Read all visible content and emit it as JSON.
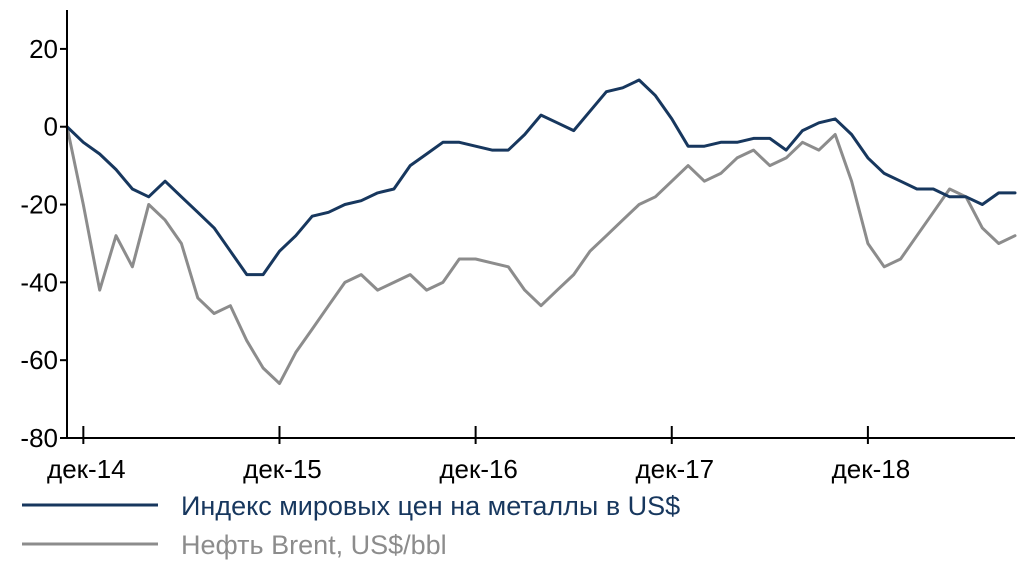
{
  "chart_data": {
    "type": "line",
    "title": "",
    "xlabel": "",
    "ylabel": "",
    "ylim": [
      -80,
      30
    ],
    "yticks": [
      -80,
      -60,
      -40,
      -20,
      0,
      20
    ],
    "ytick_labels": [
      "-80",
      "-60",
      "-40",
      "-20",
      "0",
      "20"
    ],
    "xticks": [
      "дек-14",
      "дек-15",
      "дек-16",
      "дек-17",
      "дек-18"
    ],
    "grid": false,
    "legend_position": "bottom-left",
    "x_range": [
      "2014-11",
      "2019-09"
    ],
    "series": [
      {
        "name": "Индекс мировых цен на металлы в US$",
        "color": "#17375e",
        "x": [
          "2014-11",
          "2014-12",
          "2015-01",
          "2015-02",
          "2015-03",
          "2015-04",
          "2015-05",
          "2015-06",
          "2015-07",
          "2015-08",
          "2015-09",
          "2015-10",
          "2015-11",
          "2015-12",
          "2016-01",
          "2016-02",
          "2016-03",
          "2016-04",
          "2016-05",
          "2016-06",
          "2016-07",
          "2016-08",
          "2016-09",
          "2016-10",
          "2016-11",
          "2016-12",
          "2017-01",
          "2017-02",
          "2017-03",
          "2017-04",
          "2017-05",
          "2017-06",
          "2017-07",
          "2017-08",
          "2017-09",
          "2017-10",
          "2017-11",
          "2017-12",
          "2018-01",
          "2018-02",
          "2018-03",
          "2018-04",
          "2018-05",
          "2018-06",
          "2018-07",
          "2018-08",
          "2018-09",
          "2018-10",
          "2018-11",
          "2018-12",
          "2019-01",
          "2019-02",
          "2019-03",
          "2019-04",
          "2019-05",
          "2019-06",
          "2019-07",
          "2019-08",
          "2019-09"
        ],
        "values": [
          0,
          -4,
          -7,
          -11,
          -16,
          -18,
          -14,
          -18,
          -22,
          -26,
          -32,
          -38,
          -38,
          -32,
          -28,
          -23,
          -22,
          -20,
          -19,
          -17,
          -16,
          -10,
          -7,
          -4,
          -4,
          -5,
          -6,
          -6,
          -2,
          3,
          1,
          -1,
          4,
          9,
          10,
          12,
          8,
          2,
          -5,
          -5,
          -4,
          -4,
          -3,
          -3,
          -6,
          -1,
          1,
          2,
          -2,
          -8,
          -12,
          -14,
          -16,
          -16,
          -18,
          -18,
          -20,
          -17,
          -17
        ]
      },
      {
        "name": "Нефть Brent, US$/bbl",
        "color": "#8c8c8c",
        "x": [
          "2014-11",
          "2014-12",
          "2015-01",
          "2015-02",
          "2015-03",
          "2015-04",
          "2015-05",
          "2015-06",
          "2015-07",
          "2015-08",
          "2015-09",
          "2015-10",
          "2015-11",
          "2015-12",
          "2016-01",
          "2016-02",
          "2016-03",
          "2016-04",
          "2016-05",
          "2016-06",
          "2016-07",
          "2016-08",
          "2016-09",
          "2016-10",
          "2016-11",
          "2016-12",
          "2017-01",
          "2017-02",
          "2017-03",
          "2017-04",
          "2017-05",
          "2017-06",
          "2017-07",
          "2017-08",
          "2017-09",
          "2017-10",
          "2017-11",
          "2017-12",
          "2018-01",
          "2018-02",
          "2018-03",
          "2018-04",
          "2018-05",
          "2018-06",
          "2018-07",
          "2018-08",
          "2018-09",
          "2018-10",
          "2018-11",
          "2018-12",
          "2019-01",
          "2019-02",
          "2019-03",
          "2019-04",
          "2019-05",
          "2019-06",
          "2019-07",
          "2019-08",
          "2019-09"
        ],
        "values": [
          0,
          -20,
          -42,
          -28,
          -36,
          -20,
          -24,
          -30,
          -44,
          -48,
          -46,
          -55,
          -62,
          -66,
          -58,
          -52,
          -46,
          -40,
          -38,
          -42,
          -40,
          -38,
          -42,
          -40,
          -34,
          -34,
          -35,
          -36,
          -42,
          -46,
          -42,
          -38,
          -32,
          -28,
          -24,
          -20,
          -18,
          -14,
          -10,
          -14,
          -12,
          -8,
          -6,
          -10,
          -8,
          -4,
          -6,
          -2,
          -14,
          -30,
          -36,
          -34,
          -28,
          -22,
          -16,
          -18,
          -26,
          -30,
          -28
        ]
      }
    ]
  }
}
